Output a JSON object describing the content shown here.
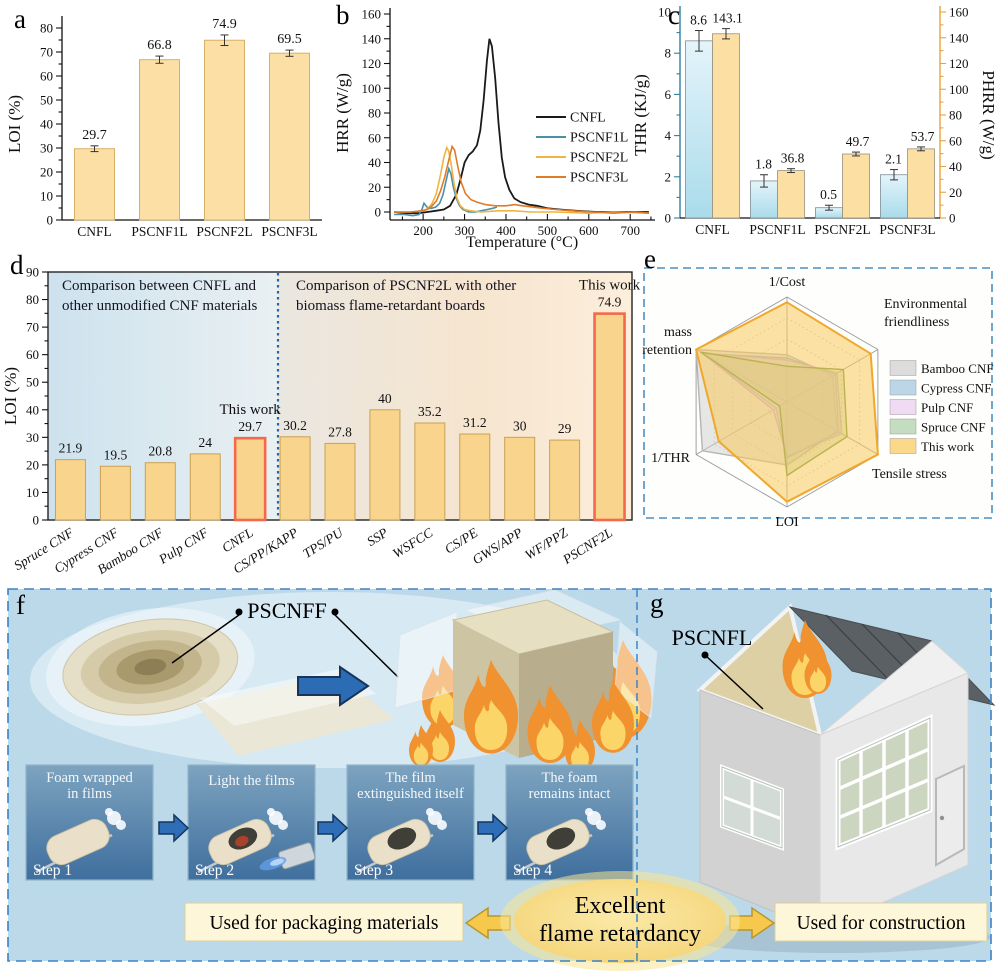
{
  "panels": {
    "a": "a",
    "b": "b",
    "c": "c",
    "d": "d",
    "e": "e",
    "f": "f",
    "g": "g"
  },
  "chart_data": [
    {
      "id": "a",
      "type": "bar",
      "title": "",
      "ylabel": "LOI (%)",
      "ylim": [
        0,
        80
      ],
      "ytick_step": 10,
      "categories": [
        "CNFL",
        "PSCNF1L",
        "PSCNF2L",
        "PSCNF3L"
      ],
      "values": [
        29.7,
        66.8,
        74.9,
        69.5
      ],
      "errors": [
        1.2,
        1.5,
        2.2,
        1.3
      ],
      "bar_color": "#fbdfa4",
      "bar_edge": "#d8b069"
    },
    {
      "id": "b",
      "type": "line",
      "xlabel": "Temperature (°C)",
      "ylabel": "HRR (W/g)",
      "xlim": [
        120,
        755
      ],
      "ylim": [
        0,
        160
      ],
      "xticks": [
        200,
        300,
        400,
        500,
        600,
        700
      ],
      "ytick_step": 20,
      "legend_position": "middle-right",
      "series": [
        {
          "name": "CNFL",
          "color": "#1a1a1a",
          "points": [
            [
              130,
              0
            ],
            [
              160,
              -1
            ],
            [
              190,
              -1
            ],
            [
              210,
              0
            ],
            [
              230,
              1
            ],
            [
              250,
              2
            ],
            [
              265,
              5
            ],
            [
              280,
              14
            ],
            [
              290,
              26
            ],
            [
              300,
              40
            ],
            [
              310,
              46
            ],
            [
              320,
              49
            ],
            [
              330,
              54
            ],
            [
              338,
              66
            ],
            [
              346,
              90
            ],
            [
              354,
              122
            ],
            [
              360,
              140
            ],
            [
              366,
              134
            ],
            [
              374,
              108
            ],
            [
              382,
              72
            ],
            [
              390,
              44
            ],
            [
              398,
              28
            ],
            [
              408,
              18
            ],
            [
              420,
              11
            ],
            [
              435,
              8
            ],
            [
              455,
              6
            ],
            [
              475,
              5
            ],
            [
              500,
              3
            ],
            [
              530,
              2
            ],
            [
              570,
              1
            ],
            [
              620,
              0
            ],
            [
              680,
              0
            ],
            [
              745,
              0
            ]
          ]
        },
        {
          "name": "PSCNF1L",
          "color": "#4a90a8",
          "points": [
            [
              130,
              -2
            ],
            [
              155,
              -2
            ],
            [
              175,
              -3
            ],
            [
              190,
              -2
            ],
            [
              197,
              2
            ],
            [
              202,
              7
            ],
            [
              207,
              5
            ],
            [
              212,
              3
            ],
            [
              220,
              3
            ],
            [
              230,
              4
            ],
            [
              240,
              7
            ],
            [
              248,
              14
            ],
            [
              256,
              26
            ],
            [
              262,
              35
            ],
            [
              267,
              31
            ],
            [
              273,
              20
            ],
            [
              280,
              11
            ],
            [
              288,
              5
            ],
            [
              296,
              2
            ],
            [
              310,
              0
            ],
            [
              325,
              0
            ],
            [
              340,
              1
            ],
            [
              355,
              2
            ],
            [
              368,
              3
            ],
            [
              378,
              4
            ]
          ]
        },
        {
          "name": "PSCNF2L",
          "color": "#f0b440",
          "points": [
            [
              130,
              0
            ],
            [
              170,
              0
            ],
            [
              200,
              1
            ],
            [
              212,
              3
            ],
            [
              222,
              7
            ],
            [
              232,
              15
            ],
            [
              242,
              30
            ],
            [
              250,
              44
            ],
            [
              257,
              52
            ],
            [
              262,
              49
            ],
            [
              268,
              38
            ],
            [
              275,
              22
            ],
            [
              282,
              11
            ],
            [
              290,
              5
            ],
            [
              300,
              2
            ],
            [
              315,
              1
            ],
            [
              340,
              0
            ],
            [
              380,
              1
            ],
            [
              420,
              1
            ],
            [
              460,
              0
            ],
            [
              520,
              0
            ],
            [
              600,
              -1
            ],
            [
              660,
              0
            ],
            [
              745,
              -1
            ]
          ]
        },
        {
          "name": "PSCNF3L",
          "color": "#e07b28",
          "points": [
            [
              130,
              0
            ],
            [
              170,
              0
            ],
            [
              195,
              1
            ],
            [
              210,
              2
            ],
            [
              222,
              5
            ],
            [
              232,
              9
            ],
            [
              242,
              17
            ],
            [
              252,
              28
            ],
            [
              262,
              42
            ],
            [
              270,
              53
            ],
            [
              276,
              50
            ],
            [
              283,
              38
            ],
            [
              292,
              24
            ],
            [
              302,
              15
            ],
            [
              315,
              10
            ],
            [
              330,
              8
            ],
            [
              350,
              6
            ],
            [
              375,
              5
            ],
            [
              400,
              5
            ],
            [
              420,
              6
            ],
            [
              440,
              5
            ],
            [
              465,
              4
            ],
            [
              490,
              3
            ],
            [
              520,
              2
            ],
            [
              560,
              1
            ],
            [
              610,
              0
            ],
            [
              660,
              -1
            ],
            [
              710,
              0
            ],
            [
              745,
              -1
            ]
          ]
        }
      ]
    },
    {
      "id": "c",
      "type": "dual-bar",
      "categories": [
        "CNFL",
        "PSCNF1L",
        "PSCNF2L",
        "PSCNF3L"
      ],
      "left": {
        "label": "THR (KJ/g)",
        "color": "#2d7fa0",
        "ylim": [
          0,
          10
        ],
        "tick_step": 2,
        "values": [
          8.6,
          1.8,
          0.5,
          2.1
        ],
        "errors": [
          0.5,
          0.3,
          0.12,
          0.25
        ],
        "bar_fill_top": "#e4f4fa",
        "bar_fill_bottom": "#a9dbeb",
        "bar_edge": "#7d8c96"
      },
      "right": {
        "label": "PHRR (W/g)",
        "color": "#e8a33d",
        "ylim": [
          0,
          160
        ],
        "tick_step": 20,
        "values": [
          143.1,
          36.8,
          49.7,
          53.7
        ],
        "errors": [
          4,
          1.5,
          1.5,
          1.5
        ],
        "bar_fill": "#fcdfa2",
        "bar_edge": "#98907a"
      }
    },
    {
      "id": "d",
      "type": "bar",
      "ylabel": "LOI (%)",
      "ylim": [
        0,
        90
      ],
      "ytick_step": 10,
      "categories": [
        "Spruce CNF",
        "Cypress CNF",
        "Bamboo CNF",
        "Pulp CNF",
        "CNFL",
        "CS/PP/KAPP",
        "TPS/PU",
        "SSP",
        "WSFCC",
        "CS/PE",
        "GWS/APP",
        "WF/PPZ",
        "PSCNF2L"
      ],
      "values": [
        21.9,
        19.5,
        20.8,
        24,
        29.7,
        30.2,
        27.8,
        40,
        35.2,
        31.2,
        30,
        29,
        74.9
      ],
      "highlight_indices": [
        4,
        12
      ],
      "highlight_label": "This work",
      "highlight_color": "#d42b1f",
      "highlight_edge": "#f4694b",
      "annotation_left": [
        "Comparison between CNFL and",
        "other unmodified CNF materials"
      ],
      "annotation_right": [
        "Comparison of PSCNF2L with other",
        "biomass flame-retardant boards"
      ],
      "bar_color": "#f8d48c",
      "bar_edge": "#c9a153"
    },
    {
      "id": "e",
      "type": "radar",
      "axes": [
        [
          "1/Cost"
        ],
        [
          "Environmental",
          "friendliness"
        ],
        [
          "Tensile stress"
        ],
        [
          "LOI"
        ],
        [
          "1/THR"
        ],
        [
          "mass",
          "retention"
        ]
      ],
      "series": [
        {
          "name": "Bamboo CNF",
          "values": [
            0.45,
            0.5,
            0.55,
            0.6,
            0.93,
            1.0
          ],
          "fill": "rgba(205,205,205,0.50)",
          "stroke": "#b5b5b5",
          "swatch": "#dcdcdc"
        },
        {
          "name": "Cypress CNF",
          "values": [
            0.42,
            0.53,
            0.57,
            0.53,
            0.12,
            0.92
          ],
          "fill": "rgba(176,208,230,0.35)",
          "stroke": "#8fb8d4",
          "swatch": "#bcd6e8"
        },
        {
          "name": "Pulp CNF",
          "values": [
            0.4,
            0.55,
            0.6,
            0.52,
            0.15,
            0.93
          ],
          "fill": "rgba(231,196,236,0.40)",
          "stroke": "#d2a8d8",
          "swatch": "#f0daf4"
        },
        {
          "name": "Spruce CNF",
          "values": [
            0.34,
            0.62,
            0.66,
            0.7,
            0.08,
            0.95
          ],
          "fill": "rgba(168,200,150,0.35)",
          "stroke": "#6f9c44",
          "swatch": "#c4dcc0"
        },
        {
          "name": "This work",
          "values": [
            0.95,
            0.92,
            1.0,
            0.95,
            0.75,
            1.0
          ],
          "fill": "rgba(248,200,90,0.55)",
          "stroke": "#f0a82c",
          "swatch": "#fcd98a"
        }
      ],
      "this_work_color": "#c0392b"
    }
  ],
  "illustration": {
    "f": {
      "product_label": "PSCNFF",
      "steps": [
        {
          "caption": [
            "Foam wrapped",
            "in films"
          ],
          "step": "Step 1"
        },
        {
          "caption": [
            "Light the films"
          ],
          "step": "Step 2"
        },
        {
          "caption": [
            "The  film",
            "extinguished itself"
          ],
          "step": "Step 3"
        },
        {
          "caption": [
            "The foam",
            "remains intact"
          ],
          "step": "Step 4"
        }
      ]
    },
    "g": {
      "product_label": "PSCNFL"
    },
    "banner": {
      "left": "Used for packaging materials",
      "center_lines": [
        "Excellent",
        "flame retardancy"
      ],
      "right": "Used for construction"
    }
  }
}
